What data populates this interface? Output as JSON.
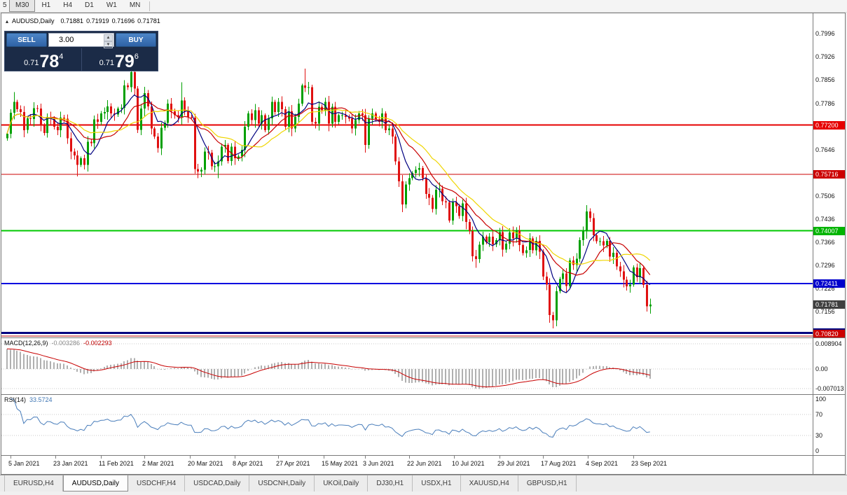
{
  "toolbar": {
    "timeframes": [
      "5",
      "M30",
      "H1",
      "H4",
      "D1",
      "W1",
      "MN"
    ],
    "active": "M30"
  },
  "chart": {
    "symbol_label": "AUDUSD,Daily",
    "open": "0.71881",
    "high": "0.71919",
    "low": "0.71696",
    "close": "0.71781"
  },
  "icons": {
    "panel_collapse": "▴",
    "spin_up": "▲",
    "spin_down": "▼"
  },
  "trade_panel": {
    "sell_label": "SELL",
    "buy_label": "BUY",
    "volume": "3.00",
    "sell_price": {
      "prefix": "0.71",
      "big": "78",
      "sup": "4"
    },
    "buy_price": {
      "prefix": "0.71",
      "big": "79",
      "sup": "6"
    }
  },
  "price_axis": {
    "ladder": {
      "start": 0.7996,
      "step": 0.007,
      "count": 14
    },
    "bid_badge": {
      "text": "0.71781",
      "price": 0.71781,
      "bg": "#3f3f3f"
    }
  },
  "macd": {
    "name": "MACD(12,26,9)",
    "main_value": "-0.003286",
    "signal_value": "-0.002293",
    "axis": [
      {
        "text": "0.008904",
        "value": 0.008904
      },
      {
        "text": "0.00",
        "value": 0
      },
      {
        "text": "-0.007013",
        "value": -0.007013
      }
    ],
    "histogram_color": "#b0b0b0",
    "signal_color": "#c80000"
  },
  "rsi": {
    "name": "RSI(14)",
    "value": "33.5724",
    "axis": [
      {
        "text": "100",
        "value": 100
      },
      {
        "text": "70",
        "value": 70
      },
      {
        "text": "30",
        "value": 30
      },
      {
        "text": "0",
        "value": 0
      }
    ],
    "levels": [
      70,
      30
    ],
    "line_color": "#4a7ebb"
  },
  "tabs": [
    {
      "label": "EURUSD,H4",
      "active": false
    },
    {
      "label": "AUDUSD,Daily",
      "active": true
    },
    {
      "label": "USDCHF,H4",
      "active": false
    },
    {
      "label": "USDCAD,Daily",
      "active": false
    },
    {
      "label": "USDCNH,Daily",
      "active": false
    },
    {
      "label": "UKOil,Daily",
      "active": false
    },
    {
      "label": "DJ30,H1",
      "active": false
    },
    {
      "label": "USDX,H1",
      "active": false
    },
    {
      "label": "XAUUSD,H4",
      "active": false
    },
    {
      "label": "GBPUSD,H1",
      "active": false
    }
  ],
  "chart_data": {
    "type": "candlestick",
    "symbol": "AUDUSD",
    "timeframe": "Daily",
    "price_max": 0.8058,
    "price_min": 0.7078,
    "up_color": "#00A000",
    "down_color": "#E01010",
    "open_first": 0.768,
    "closes": [
      0.7694,
      0.7757,
      0.779,
      0.7768,
      0.776,
      0.7705,
      0.774,
      0.7738,
      0.7771,
      0.777,
      0.772,
      0.7696,
      0.7745,
      0.774,
      0.7715,
      0.7705,
      0.7743,
      0.7739,
      0.768,
      0.764,
      0.7628,
      0.76,
      0.762,
      0.76,
      0.767,
      0.7665,
      0.7737,
      0.773,
      0.7755,
      0.776,
      0.7777,
      0.7755,
      0.7752,
      0.777,
      0.7772,
      0.784,
      0.7835,
      0.788,
      0.783,
      0.7706,
      0.777,
      0.7817,
      0.7777,
      0.771,
      0.7685,
      0.765,
      0.7712,
      0.7727,
      0.7785,
      0.7762,
      0.775,
      0.7745,
      0.7795,
      0.7762,
      0.7745,
      0.7743,
      0.7587,
      0.758,
      0.7585,
      0.764,
      0.7637,
      0.7595,
      0.7596,
      0.761,
      0.7655,
      0.766,
      0.7611,
      0.7655,
      0.762,
      0.7625,
      0.7645,
      0.7715,
      0.7755,
      0.7735,
      0.7765,
      0.7725,
      0.775,
      0.7705,
      0.774,
      0.779,
      0.776,
      0.779,
      0.7768,
      0.7715,
      0.7762,
      0.771,
      0.7745,
      0.7785,
      0.784,
      0.7833,
      0.7835,
      0.773,
      0.7725,
      0.7775,
      0.7765,
      0.779,
      0.7725,
      0.7775,
      0.773,
      0.775,
      0.775,
      0.7745,
      0.774,
      0.771,
      0.7735,
      0.7755,
      0.775,
      0.766,
      0.774,
      0.7755,
      0.7737,
      0.773,
      0.7755,
      0.7705,
      0.771,
      0.7685,
      0.761,
      0.755,
      0.748,
      0.754,
      0.756,
      0.7575,
      0.7585,
      0.759,
      0.756,
      0.7512,
      0.75,
      0.7466,
      0.7525,
      0.7528,
      0.749,
      0.7487,
      0.7432,
      0.7487,
      0.7475,
      0.7445,
      0.7483,
      0.7427,
      0.74,
      0.7324,
      0.7315,
      0.7358,
      0.7383,
      0.7366,
      0.7383,
      0.736,
      0.7372,
      0.7397,
      0.7344,
      0.7362,
      0.7395,
      0.7377,
      0.7402,
      0.7357,
      0.7333,
      0.7342,
      0.7377,
      0.7341,
      0.737,
      0.7337,
      0.7262,
      0.7238,
      0.7146,
      0.713,
      0.7218,
      0.7255,
      0.7272,
      0.7234,
      0.7311,
      0.7297,
      0.7316,
      0.7372,
      0.74,
      0.7459,
      0.7439,
      0.7387,
      0.7369,
      0.7369,
      0.7356,
      0.737,
      0.7322,
      0.7334,
      0.7293,
      0.7278,
      0.7253,
      0.7232,
      0.7238,
      0.729,
      0.726,
      0.7288,
      0.7237,
      0.7172,
      0.7178
    ],
    "wick_overrides": {
      "2": {
        "h": 0.782
      },
      "21": {
        "l": 0.7565
      },
      "37": {
        "h": 0.7915
      },
      "38": {
        "h": 0.79
      },
      "52": {
        "h": 0.7849
      },
      "58": {
        "l": 0.7563
      },
      "63": {
        "l": 0.756
      },
      "89": {
        "h": 0.7891
      },
      "90": {
        "h": 0.785
      },
      "118": {
        "l": 0.7478
      },
      "140": {
        "l": 0.7289
      },
      "163": {
        "l": 0.7106
      },
      "173": {
        "h": 0.7477
      },
      "191": {
        "l": 0.7169
      }
    },
    "mas": [
      {
        "period": 7,
        "color": "#000080"
      },
      {
        "period": 14,
        "color": "#C80000"
      },
      {
        "period": 21,
        "color": "#EFD500"
      }
    ],
    "levels": [
      {
        "price": 0.772,
        "color": "#E60000",
        "width": 2,
        "badge": "0.77200",
        "badge_bg": "#E60000"
      },
      {
        "price": 0.75716,
        "color": "#CC0000",
        "width": 1,
        "badge": "0.75716",
        "badge_bg": "#CC0000"
      },
      {
        "price": 0.74007,
        "color": "#00C800",
        "width": 2,
        "badge": "0.74007",
        "badge_bg": "#00B400"
      },
      {
        "price": 0.72411,
        "color": "#0000E0",
        "width": 2,
        "badge": "0.72411",
        "badge_bg": "#0000CC"
      },
      {
        "price": 0.7092,
        "color": "#000080",
        "width": 3,
        "badge": "0.70920",
        "badge_bg": "#000080"
      },
      {
        "price": 0.7082,
        "color": "#B00000",
        "width": 1,
        "badge": "0.70820",
        "badge_bg": "#CC0000"
      }
    ],
    "dates": [
      {
        "label": "5 Jan 2021",
        "i": 1
      },
      {
        "label": "23 Jan 2021",
        "i": 14.5
      },
      {
        "label": "11 Feb 2021",
        "i": 28
      },
      {
        "label": "2 Mar 2021",
        "i": 41
      },
      {
        "label": "20 Mar 2021",
        "i": 54.5
      },
      {
        "label": "8 Apr 2021",
        "i": 68
      },
      {
        "label": "27 Apr 2021",
        "i": 81
      },
      {
        "label": "15 May 2021",
        "i": 94.5
      },
      {
        "label": "3 Jun 2021",
        "i": 107
      },
      {
        "label": "22 Jun 2021",
        "i": 120
      },
      {
        "label": "10 Jul 2021",
        "i": 133.5
      },
      {
        "label": "29 Jul 2021",
        "i": 147
      },
      {
        "label": "17 Aug 2021",
        "i": 160
      },
      {
        "label": "4 Sep 2021",
        "i": 173.5
      },
      {
        "label": "23 Sep 2021",
        "i": 187
      }
    ]
  }
}
